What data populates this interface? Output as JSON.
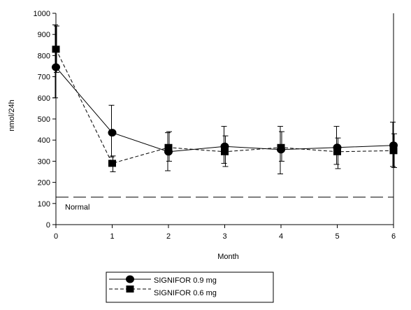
{
  "chart_data": {
    "type": "line",
    "xlabel": "Month",
    "ylabel": "nmol/24h",
    "xlim": [
      0,
      6
    ],
    "ylim": [
      0,
      1000
    ],
    "x": [
      0,
      1,
      2,
      3,
      4,
      5,
      6
    ],
    "yticks": [
      0,
      100,
      200,
      300,
      400,
      500,
      600,
      700,
      800,
      900,
      1000
    ],
    "series": [
      {
        "name": "SIGNIFOR 0.9 mg",
        "line": "solid",
        "marker": "circle",
        "values": [
          745,
          435,
          345,
          370,
          355,
          365,
          375
        ],
        "err_low": [
          600,
          320,
          255,
          290,
          240,
          285,
          275
        ],
        "err_high": [
          945,
          565,
          435,
          465,
          465,
          465,
          485
        ]
      },
      {
        "name": "SIGNIFOR 0.6 mg",
        "line": "dashed",
        "marker": "square",
        "values": [
          830,
          290,
          365,
          345,
          365,
          345,
          350
        ],
        "err_low": [
          720,
          250,
          300,
          275,
          300,
          265,
          270
        ],
        "err_high": [
          940,
          325,
          440,
          420,
          440,
          410,
          430
        ]
      }
    ],
    "reference_lines": [
      {
        "label": "Normal",
        "y": 130,
        "style": "long-dash"
      }
    ],
    "legend_position": "bottom"
  }
}
